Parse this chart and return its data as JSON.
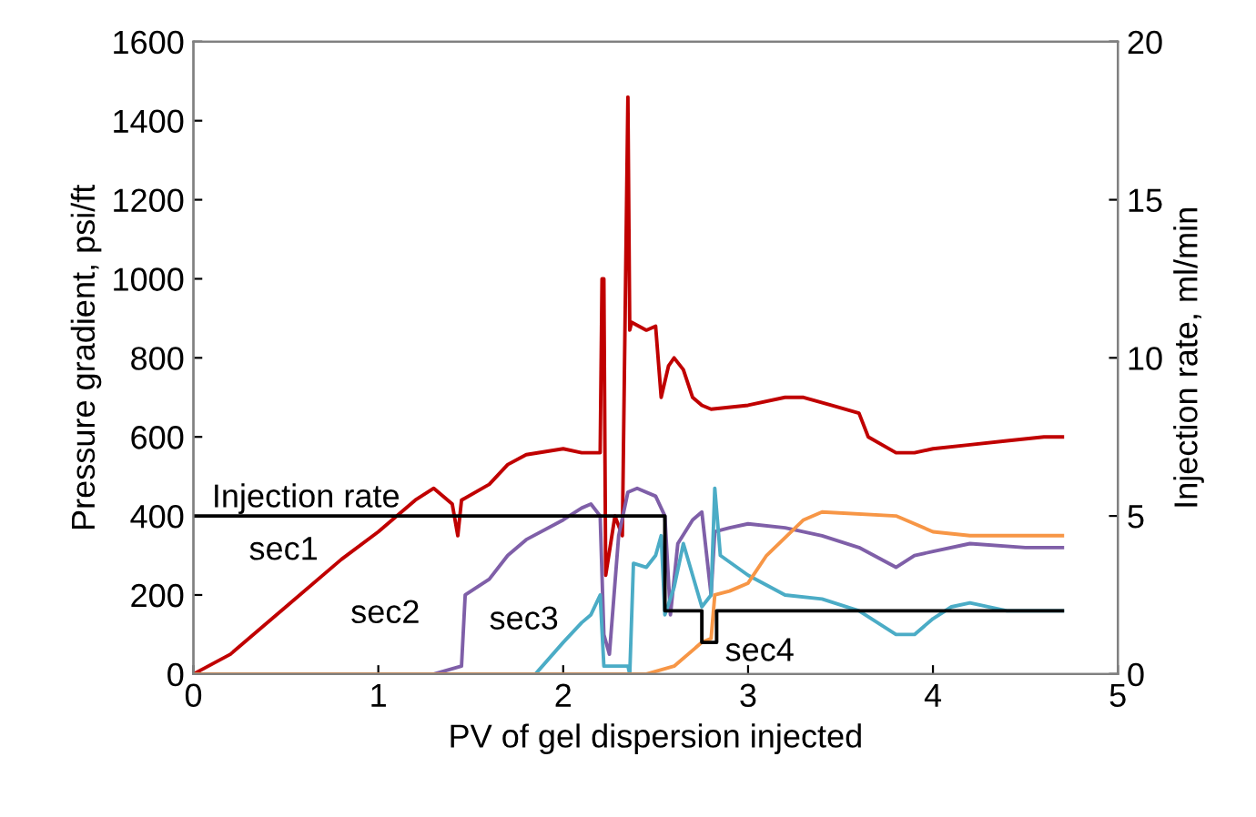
{
  "chart_data": {
    "type": "line",
    "xlabel": "PV of gel dispersion injected",
    "ylabel": "Pressure gradient, psi/ft",
    "y2label": "Injection rate, ml/min",
    "xlim": [
      0,
      5
    ],
    "xticks": [
      0,
      1,
      2,
      3,
      4,
      5
    ],
    "ylim": [
      0,
      1600
    ],
    "yticks": [
      0,
      200,
      400,
      600,
      800,
      1000,
      1200,
      1400,
      1600
    ],
    "y2lim": [
      0,
      20
    ],
    "y2ticks": [
      0,
      5,
      10,
      15,
      20
    ],
    "grid": false,
    "marker": "none",
    "line_style": "solid",
    "series": [
      {
        "name": "sec1",
        "color": "#c00000",
        "x": [
          0,
          0.2,
          0.5,
          0.8,
          1.0,
          1.2,
          1.3,
          1.4,
          1.43,
          1.45,
          1.6,
          1.7,
          1.8,
          2.0,
          2.1,
          2.2,
          2.21,
          2.22,
          2.23,
          2.28,
          2.32,
          2.35,
          2.36,
          2.37,
          2.45,
          2.5,
          2.53,
          2.57,
          2.6,
          2.65,
          2.7,
          2.75,
          2.8,
          3.0,
          3.2,
          3.3,
          3.45,
          3.6,
          3.65,
          3.8,
          3.9,
          4.0,
          4.2,
          4.4,
          4.6,
          4.7
        ],
        "values": [
          0,
          50,
          170,
          290,
          360,
          440,
          470,
          430,
          350,
          440,
          480,
          530,
          555,
          570,
          560,
          560,
          1000,
          1000,
          250,
          400,
          350,
          1460,
          870,
          890,
          870,
          880,
          700,
          780,
          800,
          770,
          700,
          680,
          670,
          680,
          700,
          700,
          680,
          660,
          600,
          560,
          560,
          570,
          580,
          590,
          600,
          600
        ]
      },
      {
        "name": "sec2",
        "color": "#7f5fa8",
        "x": [
          0,
          1.3,
          1.45,
          1.47,
          1.6,
          1.7,
          1.8,
          2.0,
          2.1,
          2.15,
          2.2,
          2.22,
          2.25,
          2.3,
          2.35,
          2.4,
          2.5,
          2.55,
          2.58,
          2.62,
          2.7,
          2.75,
          2.8,
          2.82,
          2.9,
          3.0,
          3.2,
          3.4,
          3.6,
          3.8,
          3.9,
          4.0,
          4.2,
          4.5,
          4.7
        ],
        "values": [
          0,
          0,
          20,
          200,
          240,
          300,
          340,
          390,
          420,
          430,
          400,
          100,
          50,
          350,
          460,
          470,
          450,
          400,
          150,
          330,
          390,
          410,
          200,
          360,
          370,
          380,
          370,
          350,
          320,
          270,
          300,
          310,
          330,
          320,
          320
        ]
      },
      {
        "name": "sec3",
        "color": "#4bacc6",
        "x": [
          0,
          1.85,
          2.0,
          2.1,
          2.15,
          2.2,
          2.22,
          2.35,
          2.36,
          2.38,
          2.45,
          2.5,
          2.53,
          2.55,
          2.6,
          2.65,
          2.7,
          2.75,
          2.8,
          2.82,
          2.85,
          3.0,
          3.2,
          3.4,
          3.6,
          3.8,
          3.9,
          4.0,
          4.1,
          4.2,
          4.4,
          4.7
        ],
        "values": [
          0,
          0,
          80,
          130,
          150,
          200,
          20,
          20,
          0,
          280,
          270,
          300,
          350,
          150,
          220,
          330,
          250,
          170,
          200,
          470,
          300,
          250,
          200,
          190,
          160,
          100,
          100,
          140,
          170,
          180,
          160,
          160
        ]
      },
      {
        "name": "sec4",
        "color": "#f79646",
        "x": [
          0,
          2.45,
          2.6,
          2.75,
          2.8,
          2.82,
          2.9,
          3.0,
          3.1,
          3.3,
          3.4,
          3.8,
          4.0,
          4.2,
          4.7
        ],
        "values": [
          0,
          0,
          20,
          80,
          90,
          200,
          210,
          230,
          300,
          390,
          410,
          400,
          360,
          350,
          350
        ]
      },
      {
        "name": "Injection rate",
        "type": "step",
        "axis": "y2",
        "color": "#000000",
        "x": [
          0,
          2.55,
          2.75,
          2.83,
          4.7
        ],
        "values": [
          5,
          2,
          1,
          2,
          2
        ]
      }
    ]
  }
}
